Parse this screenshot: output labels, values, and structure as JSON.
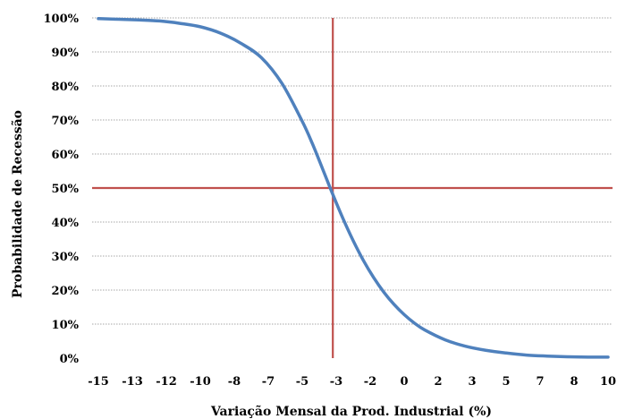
{
  "chart_data": {
    "type": "line",
    "title": "",
    "xlabel": "Variação Mensal da Prod. Industrial (%)",
    "ylabel": "Probabilidade de Recessão",
    "x_tick_labels": [
      "-15",
      "-13",
      "-12",
      "-10",
      "-8",
      "-7",
      "-5",
      "-3",
      "-2",
      "0",
      "2",
      "3",
      "5",
      "7",
      "8",
      "10"
    ],
    "y_tick_labels": [
      "0%",
      "10%",
      "20%",
      "30%",
      "40%",
      "50%",
      "60%",
      "70%",
      "80%",
      "90%",
      "100%"
    ],
    "xlim": [
      -15,
      10
    ],
    "ylim": [
      0,
      100
    ],
    "grid": true,
    "legend": "none",
    "series": [
      {
        "x": [
          -15,
          -14,
          -13,
          -12,
          -11,
          -10,
          -9,
          -8,
          -7,
          -6,
          -5,
          -4.5,
          -4,
          -3.5,
          -3,
          -2.5,
          -2,
          -1.5,
          -1,
          -0.5,
          0,
          0.5,
          1,
          2,
          3,
          4,
          5,
          6,
          7,
          8,
          9,
          10
        ],
        "values": [
          99.8,
          99.6,
          99.4,
          99.1,
          98.4,
          97.4,
          95.5,
          92.5,
          88.3,
          80.8,
          69.6,
          63.0,
          55.6,
          48.1,
          41.0,
          34.5,
          28.7,
          23.7,
          19.4,
          15.8,
          12.8,
          10.3,
          8.3,
          5.4,
          3.5,
          2.3,
          1.5,
          0.9,
          0.6,
          0.4,
          0.3,
          0.3
        ],
        "color": "#4f81bd"
      }
    ],
    "reference_lines": {
      "horizontal_value": 50,
      "vertical_value": -3.5,
      "color": "#c0504d"
    }
  }
}
